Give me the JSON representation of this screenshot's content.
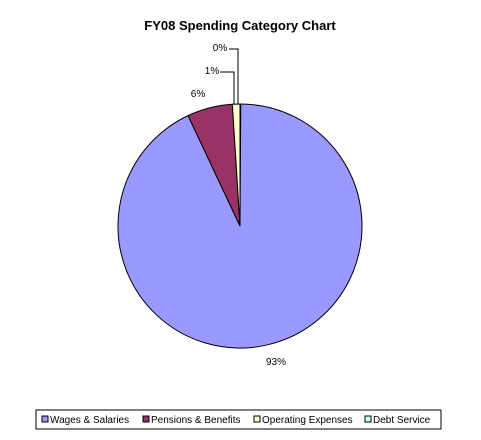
{
  "chart_data": {
    "type": "pie",
    "title": "FY08 Spending Category Chart",
    "categories": [
      "Wages & Salaries",
      "Pensions & Benefits",
      "Operating Expenses",
      "Debt Service"
    ],
    "values": [
      93,
      6,
      1,
      0
    ],
    "value_labels": [
      "93%",
      "6%",
      "1%",
      "0%"
    ],
    "colors": [
      "#9999ff",
      "#993366",
      "#ffffcc",
      "#ccffff"
    ],
    "legend_position": "bottom"
  }
}
